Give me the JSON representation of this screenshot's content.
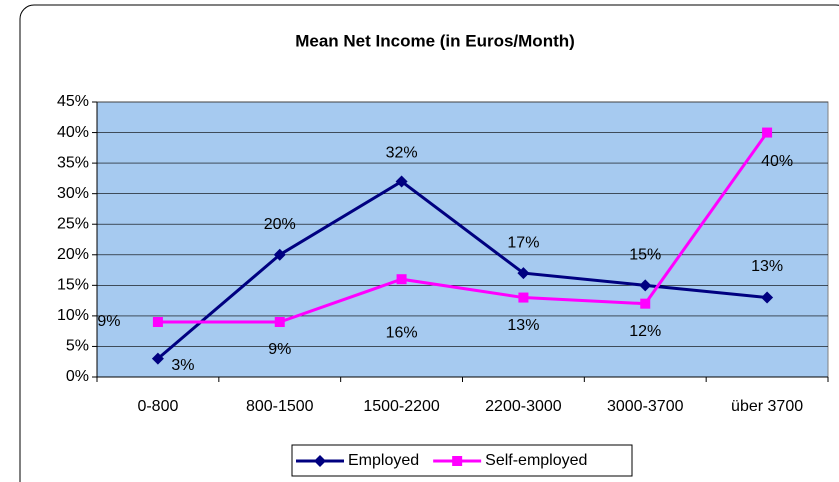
{
  "chart_data": {
    "type": "line",
    "title": "Mean Net Income (in Euros/Month)",
    "categories": [
      "0-800",
      "800-1500",
      "1500-2200",
      "2200-3000",
      "3000-3700",
      "über 3700"
    ],
    "series": [
      {
        "name": "Employed",
        "color": "#000080",
        "marker": "diamond",
        "values": [
          3,
          20,
          32,
          17,
          15,
          13
        ],
        "value_labels": [
          "3%",
          "20%",
          "32%",
          "17%",
          "15%",
          "13%"
        ]
      },
      {
        "name": "Self-employed",
        "color": "#ff00ff",
        "marker": "square",
        "values": [
          9,
          9,
          16,
          13,
          12,
          40
        ],
        "value_labels": [
          "9%",
          "9%",
          "16%",
          "13%",
          "12%",
          "40%"
        ]
      }
    ],
    "ylim": [
      0,
      45
    ],
    "yticks": [
      {
        "value": 0,
        "label": "0%"
      },
      {
        "value": 5,
        "label": "5%"
      },
      {
        "value": 10,
        "label": "10%"
      },
      {
        "value": 15,
        "label": "15%"
      },
      {
        "value": 20,
        "label": "20%"
      },
      {
        "value": 25,
        "label": "25%"
      },
      {
        "value": 30,
        "label": "30%"
      },
      {
        "value": 35,
        "label": "35%"
      },
      {
        "value": 40,
        "label": "40%"
      },
      {
        "value": 45,
        "label": "45%"
      }
    ],
    "grid": true,
    "legend": "bottom"
  }
}
